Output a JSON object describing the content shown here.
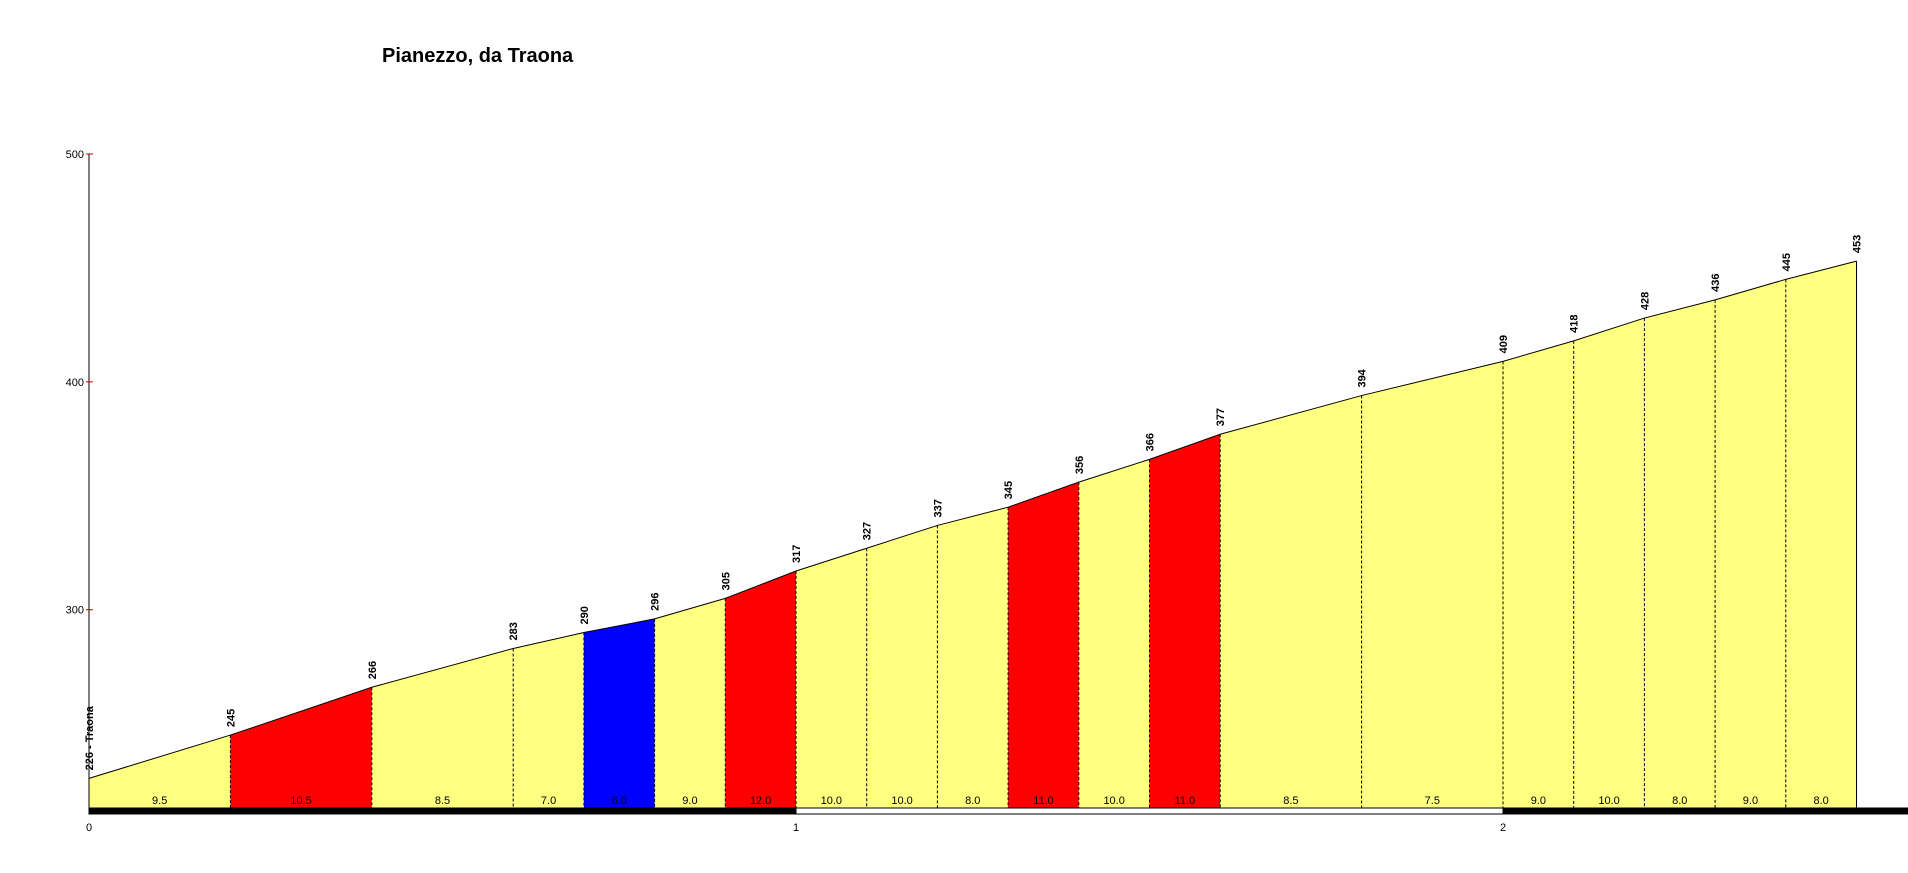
{
  "chart_data": {
    "type": "area",
    "title": "Pianezzo, da Traona",
    "xlabel": "",
    "ylabel": "",
    "xlim": [
      0,
      2.57
    ],
    "ylim": [
      213,
      500
    ],
    "y_ticks": [
      300,
      400,
      500
    ],
    "x_ticks": [
      0,
      1,
      2
    ],
    "km_bar_ends": [
      0,
      1,
      2,
      2.57
    ],
    "start_label": "226 - Traona",
    "points": [
      {
        "km": 0.0,
        "elev": 226
      },
      {
        "km": 0.2,
        "elev": 245
      },
      {
        "km": 0.4,
        "elev": 266
      },
      {
        "km": 0.6,
        "elev": 283
      },
      {
        "km": 0.7,
        "elev": 290
      },
      {
        "km": 0.8,
        "elev": 296
      },
      {
        "km": 0.9,
        "elev": 305
      },
      {
        "km": 1.0,
        "elev": 317
      },
      {
        "km": 1.1,
        "elev": 327
      },
      {
        "km": 1.2,
        "elev": 337
      },
      {
        "km": 1.3,
        "elev": 345
      },
      {
        "km": 1.4,
        "elev": 356
      },
      {
        "km": 1.5,
        "elev": 366
      },
      {
        "km": 1.6,
        "elev": 377
      },
      {
        "km": 1.8,
        "elev": 394
      },
      {
        "km": 2.0,
        "elev": 409
      },
      {
        "km": 2.1,
        "elev": 418
      },
      {
        "km": 2.2,
        "elev": 428
      },
      {
        "km": 2.3,
        "elev": 436
      },
      {
        "km": 2.4,
        "elev": 445
      },
      {
        "km": 2.5,
        "elev": 453
      }
    ],
    "segments": [
      {
        "grade": "9.5",
        "color": "#ffff80"
      },
      {
        "grade": "10.5",
        "color": "#ff0000"
      },
      {
        "grade": "8.5",
        "color": "#ffff80"
      },
      {
        "grade": "7.0",
        "color": "#ffff80"
      },
      {
        "grade": "6.0",
        "color": "#0000ff"
      },
      {
        "grade": "9.0",
        "color": "#ffff80"
      },
      {
        "grade": "12.0",
        "color": "#ff0000"
      },
      {
        "grade": "10.0",
        "color": "#ffff80"
      },
      {
        "grade": "10.0",
        "color": "#ffff80"
      },
      {
        "grade": "8.0",
        "color": "#ffff80"
      },
      {
        "grade": "11.0",
        "color": "#ff0000"
      },
      {
        "grade": "10.0",
        "color": "#ffff80"
      },
      {
        "grade": "11.0",
        "color": "#ff0000"
      },
      {
        "grade": "8.5",
        "color": "#ffff80"
      },
      {
        "grade": "7.5",
        "color": "#ffff80"
      },
      {
        "grade": "9.0",
        "color": "#ffff80"
      },
      {
        "grade": "10.0",
        "color": "#ffff80"
      },
      {
        "grade": "8.0",
        "color": "#ffff80"
      },
      {
        "grade": "9.0",
        "color": "#ffff80"
      },
      {
        "grade": "8.0",
        "color": "#ffff80"
      }
    ]
  }
}
